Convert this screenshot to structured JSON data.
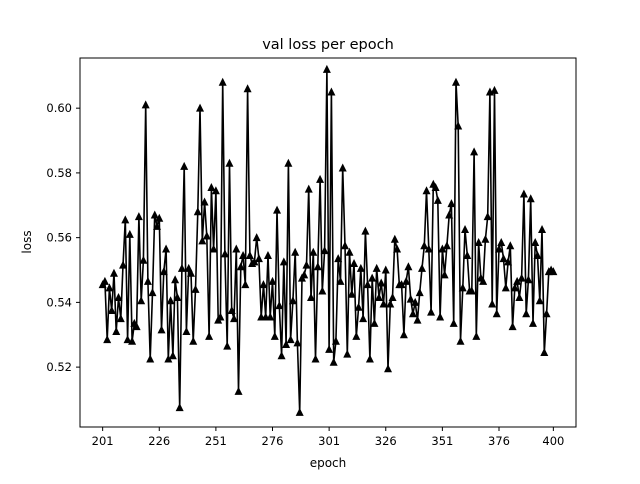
{
  "chart_data": {
    "type": "line",
    "title": "val loss per epoch",
    "xlabel": "epoch",
    "ylabel": "loss",
    "xlim": [
      191,
      410
    ],
    "ylim": [
      0.5015,
      0.6155
    ],
    "xticks": [
      201,
      226,
      251,
      276,
      301,
      326,
      351,
      376,
      400
    ],
    "yticks": [
      0.52,
      0.54,
      0.56,
      0.58,
      0.6
    ],
    "ytick_labels": [
      "0.52",
      "0.54",
      "0.56",
      "0.58",
      "0.60"
    ],
    "grid": false,
    "marker": "triangle-up",
    "color": "#000000",
    "x_start": 201,
    "series": [
      {
        "name": "val loss",
        "values": [
          0.5455,
          0.5465,
          0.5285,
          0.5445,
          0.5375,
          0.549,
          0.531,
          0.5415,
          0.535,
          0.5515,
          0.5655,
          0.5285,
          0.561,
          0.528,
          0.5335,
          0.5325,
          0.5665,
          0.5405,
          0.553,
          0.601,
          0.5465,
          0.5225,
          0.543,
          0.567,
          0.5635,
          0.566,
          0.5315,
          0.5495,
          0.5565,
          0.5225,
          0.5405,
          0.5235,
          0.547,
          0.5415,
          0.5075,
          0.5505,
          0.582,
          0.531,
          0.5505,
          0.549,
          0.528,
          0.544,
          0.568,
          0.6,
          0.559,
          0.571,
          0.5605,
          0.5295,
          0.5755,
          0.5565,
          0.5745,
          0.5345,
          0.5355,
          0.608,
          0.555,
          0.5265,
          0.583,
          0.5375,
          0.535,
          0.5565,
          0.5125,
          0.551,
          0.5545,
          0.5455,
          0.606,
          0.5545,
          0.552,
          0.5525,
          0.56,
          0.5535,
          0.5355,
          0.5455,
          0.5355,
          0.5545,
          0.5355,
          0.5465,
          0.5295,
          0.5685,
          0.539,
          0.5235,
          0.5525,
          0.527,
          0.583,
          0.5285,
          0.5405,
          0.5555,
          0.5275,
          0.506,
          0.5475,
          0.5485,
          0.5515,
          0.575,
          0.5415,
          0.5555,
          0.5225,
          0.551,
          0.578,
          0.5435,
          0.556,
          0.612,
          0.5255,
          0.605,
          0.5215,
          0.528,
          0.5535,
          0.5465,
          0.5815,
          0.5575,
          0.524,
          0.5555,
          0.5425,
          0.552,
          0.5295,
          0.5385,
          0.5505,
          0.535,
          0.562,
          0.5455,
          0.5225,
          0.5475,
          0.5335,
          0.5505,
          0.5415,
          0.546,
          0.5395,
          0.55,
          0.5195,
          0.5395,
          0.5415,
          0.5595,
          0.5565,
          0.5455,
          0.5455,
          0.53,
          0.5465,
          0.551,
          0.541,
          0.5365,
          0.54,
          0.5345,
          0.543,
          0.5505,
          0.5575,
          0.5745,
          0.5565,
          0.537,
          0.5765,
          0.5755,
          0.5715,
          0.5355,
          0.5565,
          0.5485,
          0.5575,
          0.567,
          0.5705,
          0.5335,
          0.608,
          0.5945,
          0.528,
          0.5445,
          0.5625,
          0.5545,
          0.5435,
          0.5435,
          0.5865,
          0.5295,
          0.5585,
          0.5475,
          0.5465,
          0.5595,
          0.5665,
          0.605,
          0.5395,
          0.6055,
          0.5365,
          0.5565,
          0.5585,
          0.5535,
          0.5445,
          0.5525,
          0.5575,
          0.5325,
          0.5445,
          0.5465,
          0.5415,
          0.5475,
          0.5735,
          0.5365,
          0.547,
          0.572,
          0.5335,
          0.5585,
          0.5545,
          0.5405,
          0.5625,
          0.5245,
          0.5365,
          0.5495,
          0.55,
          0.5495
        ]
      }
    ]
  }
}
